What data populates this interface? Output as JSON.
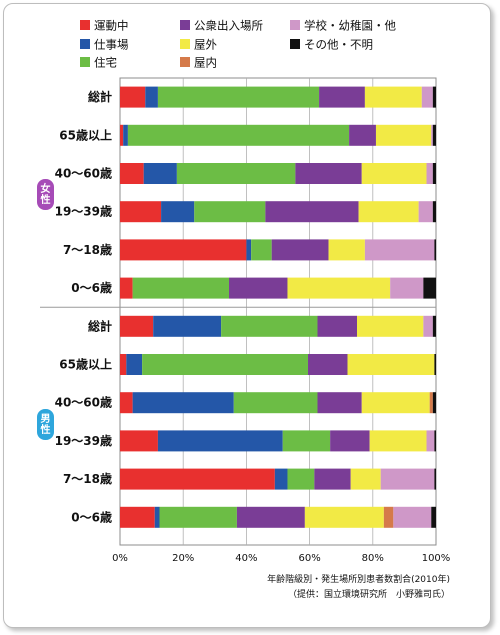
{
  "legend": [
    {
      "name": "運動中",
      "color": "#e8302f"
    },
    {
      "name": "仕事場",
      "color": "#2457a8"
    },
    {
      "name": "住宅",
      "color": "#6cbd45"
    },
    {
      "name": "公衆出入場所",
      "color": "#7a3d96"
    },
    {
      "name": "屋外",
      "color": "#f2ea45"
    },
    {
      "name": "屋内",
      "color": "#d57a4a"
    },
    {
      "name": "学校・幼稚園・他",
      "color": "#cf98c8"
    },
    {
      "name": "その他・不明",
      "color": "#111111"
    }
  ],
  "groups": [
    {
      "label": "女性",
      "color": "#a64bb7"
    },
    {
      "label": "男性",
      "color": "#2ea6dc"
    }
  ],
  "caption": {
    "line1": "年齢階級別・発生場所別患者数割合(2010年)",
    "line2": "（提供：国立環境研究所　小野雅司氏）"
  },
  "chart_data": {
    "type": "bar",
    "orientation": "horizontal",
    "stacked": true,
    "xlim": [
      0,
      100
    ],
    "x_ticks": [
      "0%",
      "20%",
      "40%",
      "60%",
      "80%",
      "100%"
    ],
    "grid": true,
    "legend_position": "top",
    "categories": [
      {
        "label": "総計",
        "group": "女性"
      },
      {
        "label": "65歳以上",
        "group": "女性"
      },
      {
        "label": "40〜60歳",
        "group": "女性"
      },
      {
        "label": "19〜39歳",
        "group": "女性"
      },
      {
        "label": "7〜18歳",
        "group": "女性"
      },
      {
        "label": "0〜6歳",
        "group": "女性"
      },
      {
        "label": "総計",
        "group": "男性"
      },
      {
        "label": "65歳以上",
        "group": "男性"
      },
      {
        "label": "40〜60歳",
        "group": "男性"
      },
      {
        "label": "19〜39歳",
        "group": "男性"
      },
      {
        "label": "7〜18歳",
        "group": "男性"
      },
      {
        "label": "0〜6歳",
        "group": "男性"
      }
    ],
    "series": [
      {
        "name": "運動中",
        "values": [
          8,
          1,
          7.5,
          13,
          40,
          4,
          10.5,
          2,
          4,
          12,
          49,
          11
        ]
      },
      {
        "name": "仕事場",
        "values": [
          4,
          1.5,
          10.5,
          10.5,
          1.5,
          0,
          21.5,
          5,
          32,
          39.5,
          4,
          1.5
        ]
      },
      {
        "name": "住宅",
        "values": [
          51,
          70,
          37.5,
          22.5,
          6.5,
          30.5,
          30.5,
          52.5,
          26.5,
          15,
          8.5,
          24.5
        ]
      },
      {
        "name": "公衆出入場所",
        "values": [
          14.5,
          8.5,
          21,
          29.5,
          18,
          18.5,
          12.5,
          12.5,
          14,
          12.5,
          11.5,
          21.5
        ]
      },
      {
        "name": "屋外",
        "values": [
          18,
          17.5,
          20.5,
          19,
          11.5,
          32.5,
          21,
          27.5,
          21.5,
          18,
          9.5,
          25
        ]
      },
      {
        "name": "屋内",
        "values": [
          0,
          0,
          0,
          0,
          0,
          0,
          0,
          0,
          1,
          0,
          0,
          3
        ]
      },
      {
        "name": "学校・幼稚園・他",
        "values": [
          3.5,
          0.5,
          2,
          4.5,
          22,
          10.5,
          3,
          0,
          0,
          2.5,
          17,
          12
        ]
      },
      {
        "name": "その他・不明",
        "values": [
          1,
          1,
          1,
          1,
          0.5,
          4,
          1,
          0.5,
          1,
          0.5,
          0.5,
          1.5
        ]
      }
    ]
  }
}
